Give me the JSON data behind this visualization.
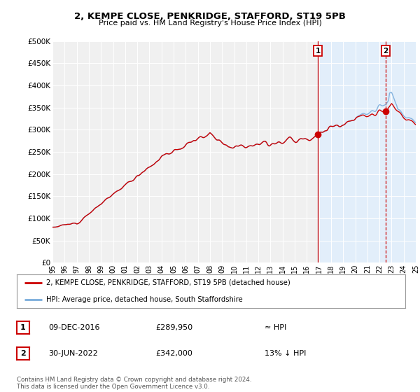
{
  "title": "2, KEMPE CLOSE, PENKRIDGE, STAFFORD, ST19 5PB",
  "subtitle": "Price paid vs. HM Land Registry's House Price Index (HPI)",
  "ylim": [
    0,
    500000
  ],
  "yticks": [
    0,
    50000,
    100000,
    150000,
    200000,
    250000,
    300000,
    350000,
    400000,
    450000,
    500000
  ],
  "ytick_labels": [
    "£0",
    "£50K",
    "£100K",
    "£150K",
    "£200K",
    "£250K",
    "£300K",
    "£350K",
    "£400K",
    "£450K",
    "£500K"
  ],
  "hpi_color": "#7aaddc",
  "price_color": "#cc0000",
  "background_color": "#ffffff",
  "plot_bg_color": "#f0f0f0",
  "shade_color": "#ddeeff",
  "legend_entry1": "2, KEMPE CLOSE, PENKRIDGE, STAFFORD, ST19 5PB (detached house)",
  "legend_entry2": "HPI: Average price, detached house, South Staffordshire",
  "ann1_date": "09-DEC-2016",
  "ann1_price": "£289,950",
  "ann1_hpi": "≈ HPI",
  "ann2_date": "30-JUN-2022",
  "ann2_price": "£342,000",
  "ann2_hpi": "13% ↓ HPI",
  "footer": "Contains HM Land Registry data © Crown copyright and database right 2024.\nThis data is licensed under the Open Government Licence v3.0.",
  "ann1_x": 2016.92,
  "ann1_y": 289950,
  "ann2_x": 2022.5,
  "ann2_y": 342000,
  "xmin": 1995,
  "xmax": 2025
}
